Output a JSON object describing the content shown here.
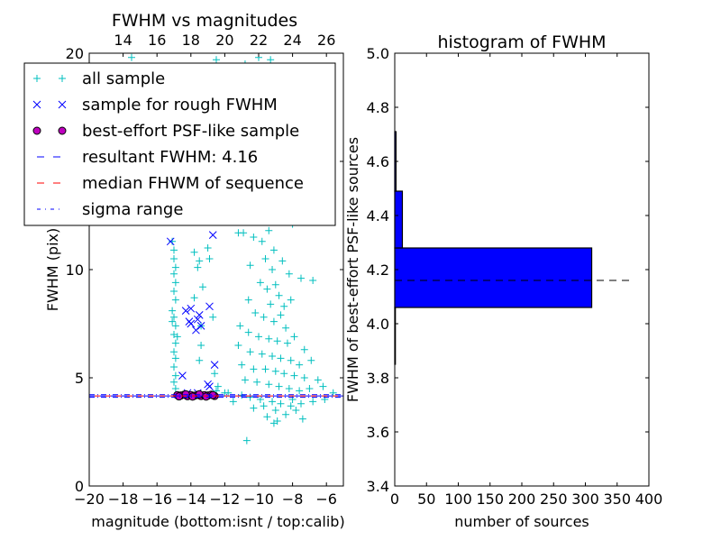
{
  "chart_data": [
    {
      "type": "scatter",
      "title": "FWHM vs magnitudes",
      "xlabel": "magnitude (bottom:isnt / top:calib)",
      "ylabel": "FWHM (pix)",
      "xlim": [
        -20,
        -5
      ],
      "ylim": [
        0,
        20
      ],
      "xticks": [
        -20,
        -18,
        -16,
        -14,
        -12,
        -10,
        -8,
        -6
      ],
      "xtick_labels": [
        "−20",
        "−18",
        "−16",
        "−14",
        "−12",
        "−10",
        "−8",
        "−6"
      ],
      "yticks": [
        0,
        5,
        10,
        15,
        20
      ],
      "ytick_labels": [
        "0",
        "5",
        "10",
        "15",
        "20"
      ],
      "top_axis": {
        "offset": 32,
        "ticks": [
          14,
          16,
          18,
          20,
          22,
          24,
          26
        ],
        "tick_labels": [
          "14",
          "16",
          "18",
          "20",
          "22",
          "24",
          "26"
        ]
      },
      "legend": {
        "placement": "upper-left",
        "entries": [
          {
            "label": "all sample",
            "marker": "+",
            "color": "#00bfbf"
          },
          {
            "label": "sample for rough FWHM",
            "marker": "x",
            "color": "#0000ff"
          },
          {
            "label": "best-effort PSF-like sample",
            "marker": "o",
            "color": "#bf00bf"
          },
          {
            "label": "resultant FWHM: 4.16",
            "marker": "dashed",
            "color": "#0000ff"
          },
          {
            "label": "median FHWM of sequence",
            "marker": "dashed",
            "color": "#ff0000"
          },
          {
            "label": "sigma range",
            "marker": "dashdot",
            "color": "#0000ff"
          }
        ]
      },
      "lines": {
        "resultant_fwhm": 4.16,
        "median_fwhm": 4.16,
        "sigma_range": [
          4.1,
          4.22
        ]
      },
      "series": [
        {
          "name": "all sample",
          "color": "#00bfbf",
          "marker": "+",
          "points": [
            [
              -15.1,
              11.3
            ],
            [
              -15.0,
              10.9
            ],
            [
              -15.0,
              10.5
            ],
            [
              -14.9,
              10.1
            ],
            [
              -15.0,
              9.8
            ],
            [
              -14.9,
              9.4
            ],
            [
              -15.0,
              9.0
            ],
            [
              -14.9,
              8.6
            ],
            [
              -15.1,
              8.1
            ],
            [
              -15.0,
              7.8
            ],
            [
              -14.9,
              7.4
            ],
            [
              -15.0,
              7.0
            ],
            [
              -14.9,
              6.6
            ],
            [
              -15.0,
              6.2
            ],
            [
              -14.9,
              5.9
            ],
            [
              -15.0,
              5.5
            ],
            [
              -14.9,
              5.1
            ],
            [
              -15.0,
              4.8
            ],
            [
              -14.9,
              4.5
            ],
            [
              -15.1,
              7.6
            ],
            [
              -14.8,
              6.9
            ],
            [
              -13.8,
              10.8
            ],
            [
              -13.5,
              10.4
            ],
            [
              -13.6,
              10.1
            ],
            [
              -12.9,
              10.5
            ],
            [
              -13.0,
              11.0
            ],
            [
              -13.3,
              9.2
            ],
            [
              -13.8,
              8.7
            ],
            [
              -13.4,
              7.4
            ],
            [
              -12.7,
              7.8
            ],
            [
              -13.4,
              6.5
            ],
            [
              -12.6,
              5.2
            ],
            [
              -13.5,
              5.8
            ],
            [
              -12.4,
              4.6
            ],
            [
              -17.5,
              19.8
            ],
            [
              -12.5,
              19.7
            ],
            [
              -12.0,
              19.0
            ],
            [
              -10.8,
              19.5
            ],
            [
              -10.0,
              19.8
            ],
            [
              -9.3,
              19.7
            ],
            [
              -8.8,
              19.1
            ],
            [
              -9.8,
              18.3
            ],
            [
              -10.5,
              17.5
            ],
            [
              -9.0,
              17.0
            ],
            [
              -11.5,
              16.5
            ],
            [
              -9.6,
              16.0
            ],
            [
              -8.4,
              15.5
            ],
            [
              -10.2,
              15.0
            ],
            [
              -9.3,
              14.4
            ],
            [
              -11.0,
              14.0
            ],
            [
              -8.7,
              13.6
            ],
            [
              -10.0,
              13.2
            ],
            [
              -9.6,
              12.8
            ],
            [
              -11.6,
              12.5
            ],
            [
              -8.0,
              12.1
            ],
            [
              -11.2,
              11.7
            ],
            [
              -10.9,
              11.7
            ],
            [
              -10.3,
              11.5
            ],
            [
              -9.8,
              11.3
            ],
            [
              -9.4,
              11.8
            ],
            [
              -9.1,
              10.9
            ],
            [
              -9.6,
              10.5
            ],
            [
              -10.5,
              10.2
            ],
            [
              -9.2,
              10.0
            ],
            [
              -8.6,
              10.4
            ],
            [
              -8.2,
              9.8
            ],
            [
              -7.5,
              9.6
            ],
            [
              -6.8,
              9.5
            ],
            [
              -9.9,
              9.4
            ],
            [
              -9.5,
              9.1
            ],
            [
              -9.0,
              9.3
            ],
            [
              -8.8,
              8.8
            ],
            [
              -10.6,
              8.6
            ],
            [
              -9.3,
              8.4
            ],
            [
              -8.5,
              8.3
            ],
            [
              -8.1,
              8.6
            ],
            [
              -10.2,
              8.0
            ],
            [
              -9.7,
              7.8
            ],
            [
              -9.1,
              7.6
            ],
            [
              -8.7,
              7.9
            ],
            [
              -8.4,
              7.3
            ],
            [
              -11.1,
              7.4
            ],
            [
              -10.6,
              7.1
            ],
            [
              -10.0,
              6.9
            ],
            [
              -9.4,
              6.8
            ],
            [
              -8.9,
              6.7
            ],
            [
              -8.3,
              6.6
            ],
            [
              -7.9,
              6.9
            ],
            [
              -7.3,
              6.3
            ],
            [
              -11.2,
              6.5
            ],
            [
              -10.5,
              6.2
            ],
            [
              -9.8,
              6.1
            ],
            [
              -9.2,
              6.0
            ],
            [
              -8.7,
              5.9
            ],
            [
              -8.1,
              5.8
            ],
            [
              -7.6,
              5.6
            ],
            [
              -6.9,
              5.8
            ],
            [
              -11.0,
              5.6
            ],
            [
              -10.3,
              5.4
            ],
            [
              -9.6,
              5.4
            ],
            [
              -9.0,
              5.3
            ],
            [
              -8.5,
              5.2
            ],
            [
              -7.9,
              5.1
            ],
            [
              -7.3,
              5.0
            ],
            [
              -6.5,
              4.9
            ],
            [
              -10.8,
              4.9
            ],
            [
              -10.1,
              4.8
            ],
            [
              -9.4,
              4.7
            ],
            [
              -8.8,
              4.6
            ],
            [
              -8.2,
              4.5
            ],
            [
              -7.6,
              4.4
            ],
            [
              -7.0,
              4.5
            ],
            [
              -6.2,
              4.6
            ],
            [
              -5.6,
              4.3
            ],
            [
              -11.8,
              4.3
            ],
            [
              -11.0,
              4.2
            ],
            [
              -10.5,
              4.1
            ],
            [
              -9.9,
              4.0
            ],
            [
              -9.2,
              3.9
            ],
            [
              -8.7,
              3.8
            ],
            [
              -8.1,
              3.7
            ],
            [
              -7.5,
              3.8
            ],
            [
              -6.8,
              3.9
            ],
            [
              -6.1,
              4.0
            ],
            [
              -9.0,
              3.5
            ],
            [
              -8.4,
              3.3
            ],
            [
              -9.5,
              3.2
            ],
            [
              -7.8,
              3.5
            ],
            [
              -10.3,
              3.6
            ],
            [
              -10.7,
              2.1
            ],
            [
              -9.1,
              2.9
            ],
            [
              -7.4,
              3.1
            ],
            [
              -12.0,
              4.3
            ],
            [
              -12.5,
              4.4
            ],
            [
              -11.5,
              3.9
            ],
            [
              -8.9,
              3.0
            ],
            [
              -8.0,
              4.0
            ],
            [
              -9.7,
              3.7
            ]
          ]
        },
        {
          "name": "sample for rough FWHM",
          "color": "#0000ff",
          "marker": "x",
          "points": [
            [
              -15.2,
              11.3
            ],
            [
              -12.7,
              11.6
            ],
            [
              -14.3,
              8.1
            ],
            [
              -14.0,
              8.2
            ],
            [
              -12.9,
              8.3
            ],
            [
              -14.1,
              7.6
            ],
            [
              -14.0,
              7.5
            ],
            [
              -13.6,
              7.7
            ],
            [
              -13.5,
              7.9
            ],
            [
              -13.4,
              7.4
            ],
            [
              -13.7,
              7.2
            ],
            [
              -14.5,
              5.1
            ],
            [
              -12.6,
              5.6
            ],
            [
              -13.0,
              4.7
            ],
            [
              -12.9,
              4.6
            ],
            [
              -14.2,
              4.3
            ],
            [
              -13.6,
              4.3
            ]
          ]
        },
        {
          "name": "best-effort PSF-like sample",
          "color": "#bf00bf",
          "marker": "o",
          "points": [
            [
              -14.8,
              4.2
            ],
            [
              -14.6,
              4.18
            ],
            [
              -14.4,
              4.22
            ],
            [
              -14.2,
              4.15
            ],
            [
              -14.0,
              4.2
            ],
            [
              -13.8,
              4.17
            ],
            [
              -13.6,
              4.21
            ],
            [
              -13.4,
              4.16
            ],
            [
              -13.2,
              4.2
            ],
            [
              -13.0,
              4.18
            ],
            [
              -12.8,
              4.22
            ],
            [
              -12.6,
              4.16
            ],
            [
              -14.7,
              4.14
            ],
            [
              -14.3,
              4.24
            ],
            [
              -13.9,
              4.13
            ],
            [
              -13.5,
              4.24
            ],
            [
              -13.1,
              4.13
            ],
            [
              -12.7,
              4.2
            ]
          ]
        }
      ]
    },
    {
      "type": "bar",
      "orientation": "horizontal",
      "title": "histogram of FWHM",
      "xlabel": "number of sources",
      "ylabel": "FWHM of best-effort PSF-like sources",
      "xlim": [
        0,
        400
      ],
      "ylim": [
        3.4,
        5.0
      ],
      "xticks": [
        0,
        50,
        100,
        150,
        200,
        250,
        300,
        350,
        400
      ],
      "xtick_labels": [
        "0",
        "50",
        "100",
        "150",
        "200",
        "250",
        "300",
        "350",
        "400"
      ],
      "yticks": [
        3.4,
        3.6,
        3.8,
        4.0,
        4.2,
        4.4,
        4.6,
        4.8,
        5.0
      ],
      "ytick_labels": [
        "3.4",
        "3.6",
        "3.8",
        "4.0",
        "4.2",
        "4.4",
        "4.6",
        "4.8",
        "5.0"
      ],
      "bins": [
        [
          3.85,
          4.06
        ],
        [
          4.06,
          4.28
        ],
        [
          4.28,
          4.49
        ],
        [
          4.49,
          4.71
        ]
      ],
      "counts": [
        1,
        310,
        12,
        2
      ],
      "bar_color": "#0000ff",
      "reference_line": {
        "value": 4.16,
        "extent": [
          0,
          370
        ],
        "style": "dashed",
        "color": "#000000"
      }
    }
  ]
}
